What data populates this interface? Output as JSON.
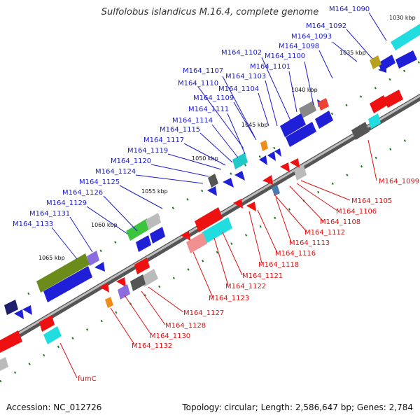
{
  "title": "Sulfolobus islandicus M.16.4, complete genome",
  "footer": {
    "accession": "Accession: NC_012726",
    "summary": "Topology: circular; Length: 2,586,647 bp; Genes: 2,784"
  },
  "colors": {
    "plus_label": "#1a1acc",
    "minus_label": "#dd1111",
    "backbone": "#888888",
    "ruler_tick": "#1f7a1f"
  },
  "kbp_labels": [
    "1030 kbp",
    "1035 kbp",
    "1040 kbp",
    "1045 kbp",
    "1050 kbp",
    "1055 kbp",
    "1060 kbp",
    "1065 kbp"
  ],
  "plus_labels": [
    "M164_1090",
    "M164_1092",
    "M164_1093",
    "M164_1098",
    "M164_1100",
    "M164_1101",
    "M164_1102",
    "M164_1103",
    "M164_1104",
    "M164_1107",
    "M164_1109",
    "M164_1110",
    "M164_1111",
    "M164_1114",
    "M164_1115",
    "M164_1117",
    "M164_1119",
    "M164_1120",
    "M164_1124",
    "M164_1125",
    "M164_1126",
    "M164_1129",
    "M164_1131",
    "M164_1133"
  ],
  "minus_labels": [
    "M164_1099",
    "M164_1105",
    "M164_1106",
    "M164_1108",
    "M164_1112",
    "M164_1113",
    "M164_1116",
    "M164_1118",
    "M164_1121",
    "M164_1122",
    "M164_1123",
    "M164_1127",
    "M164_1128",
    "M164_1130",
    "M164_1132",
    "fumC"
  ]
}
